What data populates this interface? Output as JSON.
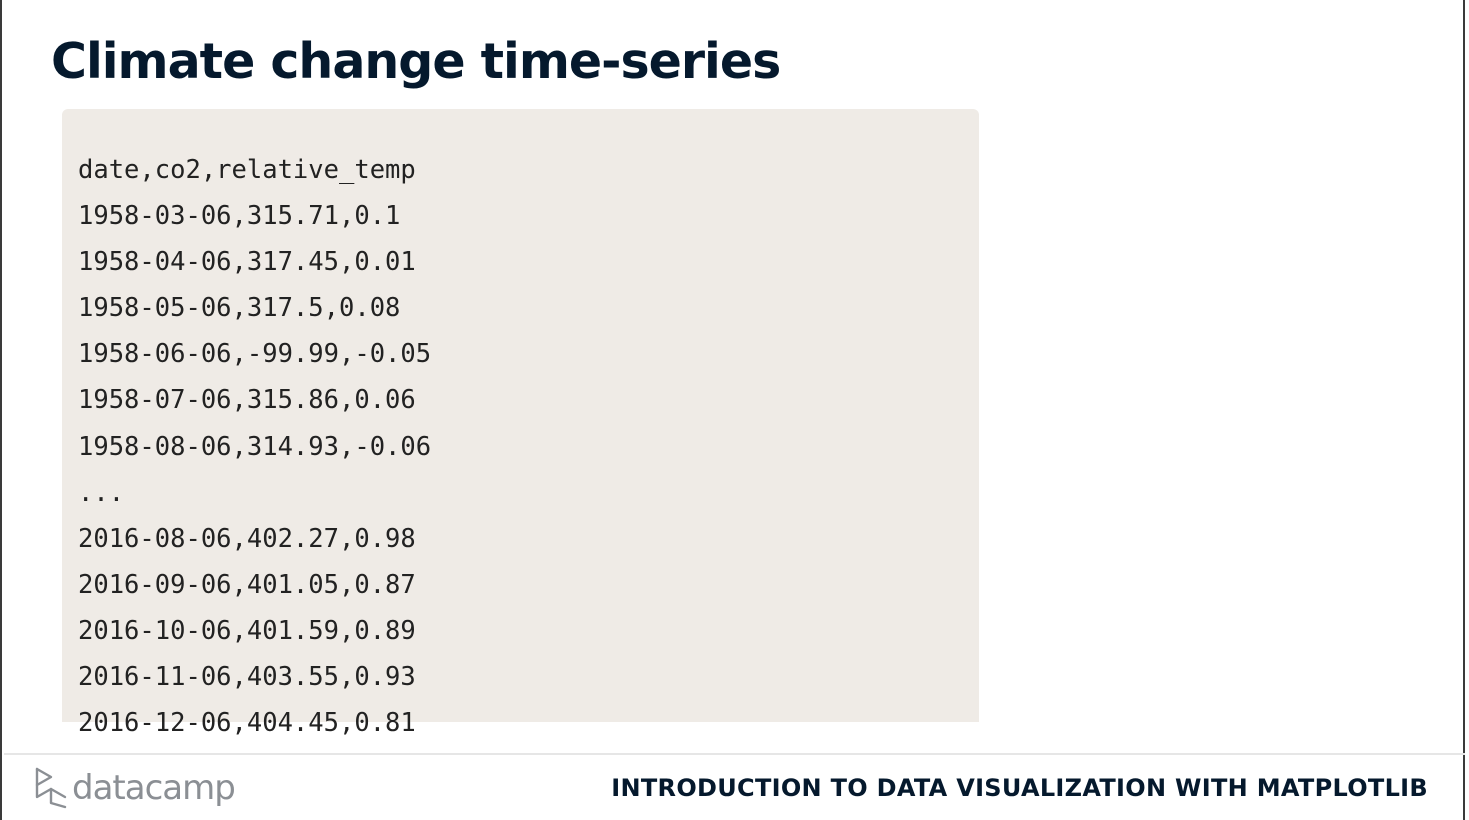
{
  "slide": {
    "title": "Climate change time-series"
  },
  "code_block": {
    "lines": [
      "date,co2,relative_temp",
      "1958-03-06,315.71,0.1",
      "1958-04-06,317.45,0.01",
      "1958-05-06,317.5,0.08",
      "1958-06-06,-99.99,-0.05",
      "1958-07-06,315.86,0.06",
      "1958-08-06,314.93,-0.06",
      "...",
      "2016-08-06,402.27,0.98",
      "2016-09-06,401.05,0.87",
      "2016-10-06,401.59,0.89",
      "2016-11-06,403.55,0.93",
      "2016-12-06,404.45,0.81"
    ],
    "background_color": "#efebe6"
  },
  "footer": {
    "logo_text": "datacamp",
    "logo_icon": "datacamp-logo-icon",
    "course_title": "INTRODUCTION TO DATA VISUALIZATION WITH MATPLOTLIB"
  },
  "colors": {
    "title": "#05192d",
    "logo": "#8b8f94"
  }
}
